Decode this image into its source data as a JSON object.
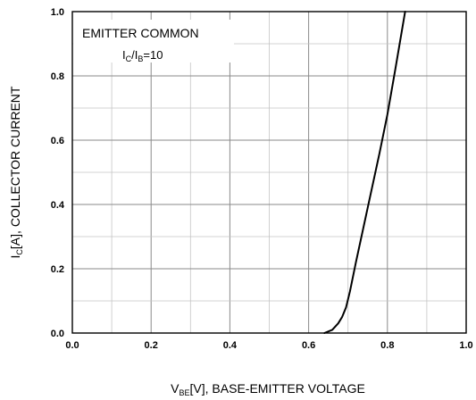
{
  "chart_data": {
    "type": "line",
    "annotation": {
      "line1": "EMITTER COMMON",
      "ratio_I1": "I",
      "ratio_sub1": "C",
      "ratio_mid": "/I",
      "ratio_sub2": "B",
      "ratio_rest": "=10"
    },
    "xlabel": {
      "main": "V",
      "sub": "BE",
      "rest": "[V], BASE-EMITTER VOLTAGE"
    },
    "ylabel": {
      "main": "I",
      "sub": "C",
      "rest": "[A], COLLECTOR CURRENT"
    },
    "xlim": [
      0.0,
      1.0
    ],
    "ylim": [
      0.0,
      1.0
    ],
    "x_major_ticks": [
      "0.0",
      "0.2",
      "0.4",
      "0.6",
      "0.8",
      "1.0"
    ],
    "y_major_ticks": [
      "0.0",
      "0.2",
      "0.4",
      "0.6",
      "0.8",
      "1.0"
    ],
    "grid": true,
    "minor_grid_step": 0.1,
    "major_grid_step": 0.2,
    "series": [
      {
        "color": "#000000",
        "x": [
          0.64,
          0.66,
          0.675,
          0.685,
          0.695,
          0.705,
          0.72,
          0.75,
          0.78,
          0.8,
          0.82,
          0.845
        ],
        "y": [
          0.0,
          0.01,
          0.03,
          0.05,
          0.08,
          0.13,
          0.22,
          0.39,
          0.56,
          0.68,
          0.82,
          1.0
        ]
      }
    ]
  }
}
